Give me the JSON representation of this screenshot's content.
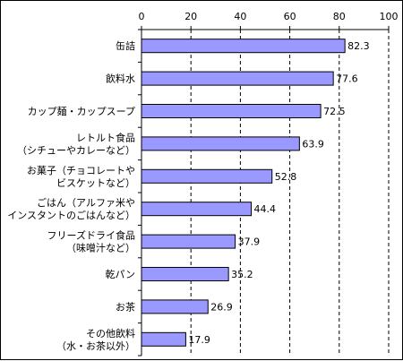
{
  "chart_data": {
    "type": "bar",
    "orientation": "horizontal",
    "categories": [
      [
        "缶詰"
      ],
      [
        "飲料水"
      ],
      [
        "カップ麺・カップスープ"
      ],
      [
        "レトルト食品",
        "（シチューやカレーなど）"
      ],
      [
        "お菓子（チョコレートや",
        "ビスケットなど）"
      ],
      [
        "ごはん（アルファ米や",
        "インスタントのごはんなど）"
      ],
      [
        "フリーズドライ食品",
        "（味噌汁など）"
      ],
      [
        "乾パン"
      ],
      [
        "お茶"
      ],
      [
        "その他飲料",
        "（水・お茶以外）"
      ]
    ],
    "values": [
      82.3,
      77.6,
      72.5,
      63.9,
      52.8,
      44.4,
      37.9,
      35.2,
      26.9,
      17.9
    ],
    "value_labels": [
      "82.3",
      "77.6",
      "72.5",
      "63.9",
      "52.8",
      "44.4",
      "37.9",
      "35.2",
      "26.9",
      "17.9"
    ],
    "xlim": [
      0,
      100
    ],
    "x_ticks": [
      0,
      20,
      40,
      60,
      80,
      100
    ],
    "x_axis_position": "top",
    "grid": "vertical dashed",
    "legend": "none",
    "colors": {
      "bar_fill": "#9999ff",
      "bar_stroke": "#000000",
      "grid": "#000000"
    }
  }
}
